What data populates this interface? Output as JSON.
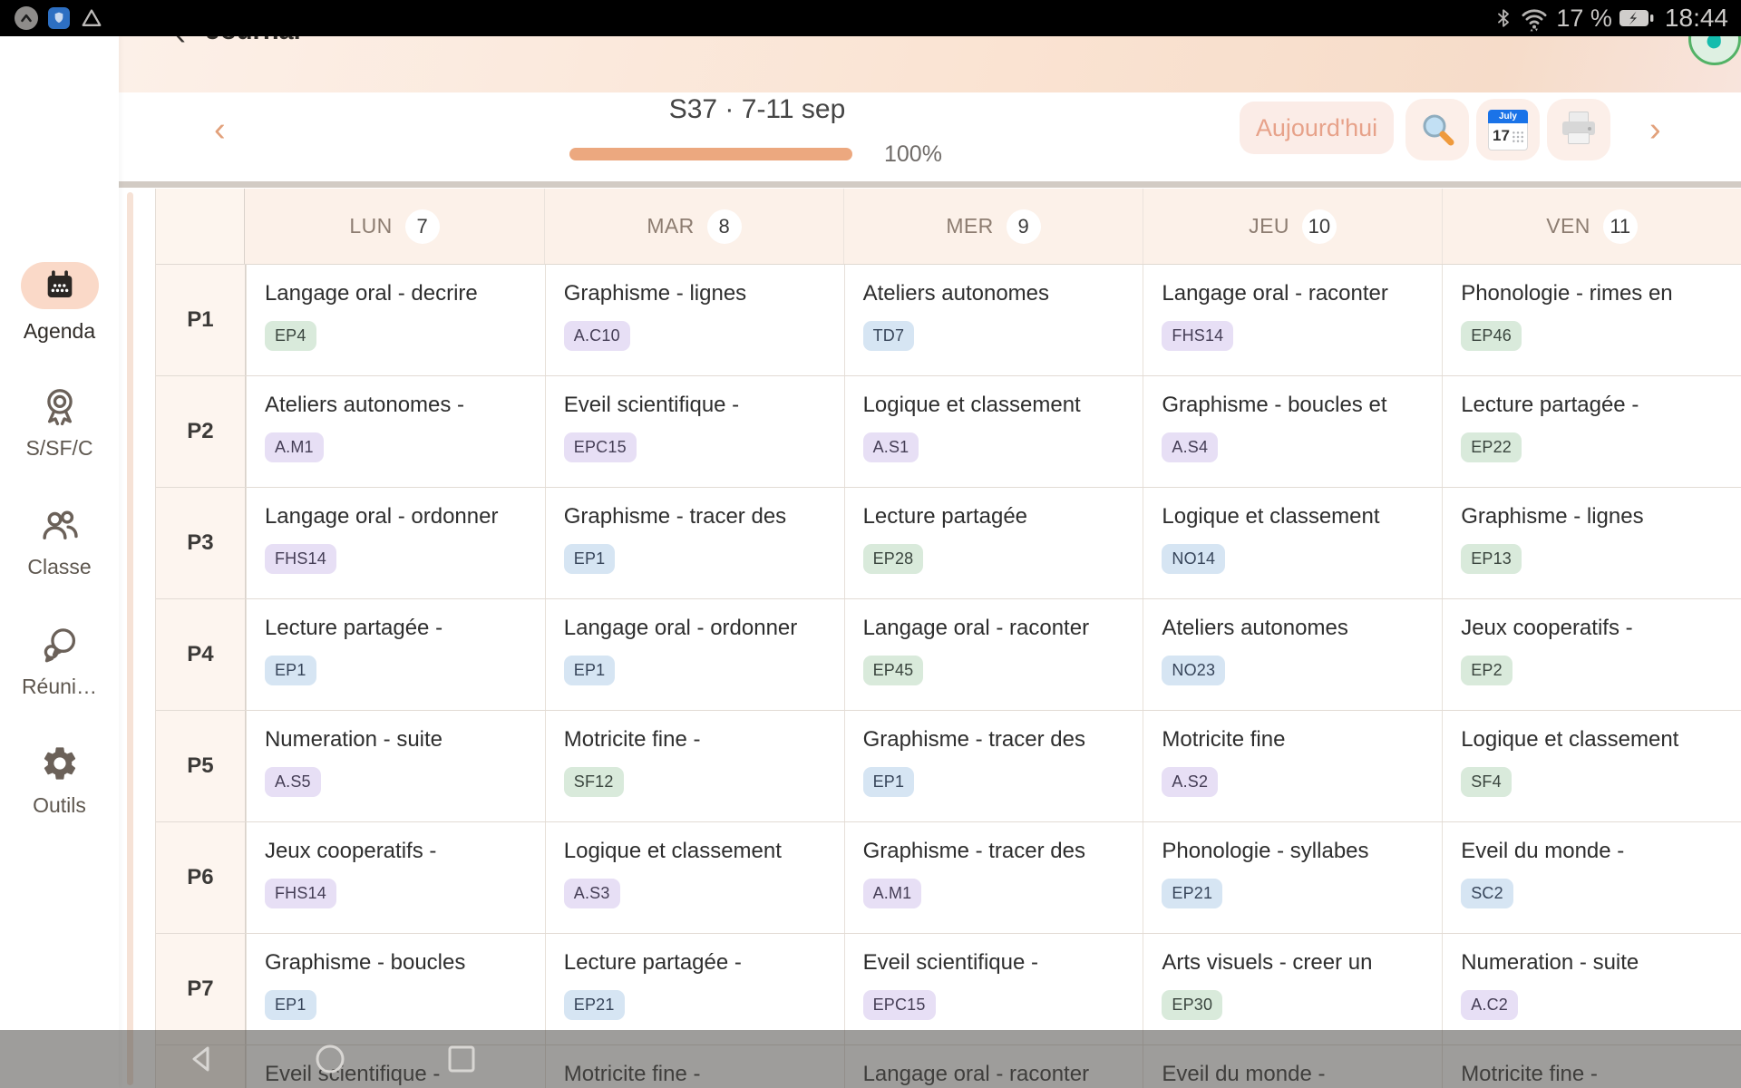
{
  "status_bar": {
    "battery_level": "17 %",
    "time": "18:44"
  },
  "app_header": {
    "back_glyph": "‹",
    "title": "Journal"
  },
  "week_nav": {
    "prev_glyph": "‹",
    "next_glyph": "›",
    "week_label": "S37 · 7-11 sep",
    "progress_percent": "100%",
    "today_button_label": "Aujourd'hui",
    "calendar_icon_month": "July",
    "calendar_icon_day": "17"
  },
  "sidebar": {
    "items": [
      {
        "label": "Agenda",
        "icon": "calendar-icon",
        "active": true
      },
      {
        "label": "S/SF/C",
        "icon": "medal-icon",
        "active": false
      },
      {
        "label": "Classe",
        "icon": "people-icon",
        "active": false
      },
      {
        "label": "Réuni…",
        "icon": "chat-icon",
        "active": false
      },
      {
        "label": "Outils",
        "icon": "gear-icon",
        "active": false
      }
    ]
  },
  "grid": {
    "days": [
      {
        "label": "LUN",
        "date": "7"
      },
      {
        "label": "MAR",
        "date": "8"
      },
      {
        "label": "MER",
        "date": "9"
      },
      {
        "label": "JEU",
        "date": "10"
      },
      {
        "label": "VEN",
        "date": "11"
      }
    ],
    "rows": [
      {
        "label": "P1",
        "cells": [
          {
            "title": "Langage oral - decrire",
            "badge": "EP4",
            "color": "green"
          },
          {
            "title": "Graphisme - lignes",
            "badge": "A.C10",
            "color": "purple"
          },
          {
            "title": "Ateliers autonomes",
            "badge": "TD7",
            "color": "blue"
          },
          {
            "title": "Langage oral - raconter",
            "badge": "FHS14",
            "color": "purple"
          },
          {
            "title": "Phonologie - rimes en",
            "badge": "EP46",
            "color": "green"
          }
        ]
      },
      {
        "label": "P2",
        "cells": [
          {
            "title": "Ateliers autonomes -",
            "badge": "A.M1",
            "color": "purple"
          },
          {
            "title": "Eveil scientifique -",
            "badge": "EPC15",
            "color": "purple"
          },
          {
            "title": "Logique et classement",
            "badge": "A.S1",
            "color": "purple"
          },
          {
            "title": "Graphisme - boucles et",
            "badge": "A.S4",
            "color": "purple"
          },
          {
            "title": "Lecture partagée -",
            "badge": "EP22",
            "color": "green"
          }
        ]
      },
      {
        "label": "P3",
        "cells": [
          {
            "title": "Langage oral - ordonner",
            "badge": "FHS14",
            "color": "purple"
          },
          {
            "title": "Graphisme - tracer des",
            "badge": "EP1",
            "color": "blue"
          },
          {
            "title": "Lecture partagée",
            "badge": "EP28",
            "color": "green"
          },
          {
            "title": "Logique et classement",
            "badge": "NO14",
            "color": "blue"
          },
          {
            "title": "Graphisme - lignes",
            "badge": "EP13",
            "color": "green"
          }
        ]
      },
      {
        "label": "P4",
        "cells": [
          {
            "title": "Lecture partagée -",
            "badge": "EP1",
            "color": "blue"
          },
          {
            "title": "Langage oral - ordonner",
            "badge": "EP1",
            "color": "blue"
          },
          {
            "title": "Langage oral - raconter",
            "badge": "EP45",
            "color": "green"
          },
          {
            "title": "Ateliers autonomes",
            "badge": "NO23",
            "color": "blue"
          },
          {
            "title": "Jeux cooperatifs -",
            "badge": "EP2",
            "color": "green"
          }
        ]
      },
      {
        "label": "P5",
        "cells": [
          {
            "title": "Numeration - suite",
            "badge": "A.S5",
            "color": "purple"
          },
          {
            "title": "Motricite fine -",
            "badge": "SF12",
            "color": "green"
          },
          {
            "title": "Graphisme - tracer des",
            "badge": "EP1",
            "color": "blue"
          },
          {
            "title": "Motricite fine",
            "badge": "A.S2",
            "color": "purple"
          },
          {
            "title": "Logique et classement",
            "badge": "SF4",
            "color": "green"
          }
        ]
      },
      {
        "label": "P6",
        "cells": [
          {
            "title": "Jeux cooperatifs -",
            "badge": "FHS14",
            "color": "purple"
          },
          {
            "title": "Logique et classement",
            "badge": "A.S3",
            "color": "purple"
          },
          {
            "title": "Graphisme - tracer des",
            "badge": "A.M1",
            "color": "purple"
          },
          {
            "title": "Phonologie - syllabes",
            "badge": "EP21",
            "color": "blue"
          },
          {
            "title": "Eveil du monde -",
            "badge": "SC2",
            "color": "blue"
          }
        ]
      },
      {
        "label": "P7",
        "cells": [
          {
            "title": "Graphisme - boucles",
            "badge": "EP1",
            "color": "blue"
          },
          {
            "title": "Lecture partagée -",
            "badge": "EP21",
            "color": "blue"
          },
          {
            "title": "Eveil scientifique -",
            "badge": "EPC15",
            "color": "purple"
          },
          {
            "title": "Arts visuels - creer un",
            "badge": "EP30",
            "color": "green"
          },
          {
            "title": "Numeration - suite",
            "badge": "A.C2",
            "color": "purple"
          }
        ]
      },
      {
        "label": "",
        "partial": true,
        "cells": [
          {
            "title": "Eveil scientifique -"
          },
          {
            "title": "Motricite fine -"
          },
          {
            "title": "Langage oral - raconter"
          },
          {
            "title": "Eveil du monde -"
          },
          {
            "title": "Motricite fine -"
          }
        ]
      }
    ]
  },
  "colors": {
    "accent": "#ECA87F",
    "badges": {
      "green": {
        "bg": "#D9EADB",
        "fg": "#3A453E"
      },
      "purple": {
        "bg": "#E7DFF5",
        "fg": "#453E56"
      },
      "blue": {
        "bg": "#D6E5F3",
        "fg": "#37455A"
      }
    }
  }
}
